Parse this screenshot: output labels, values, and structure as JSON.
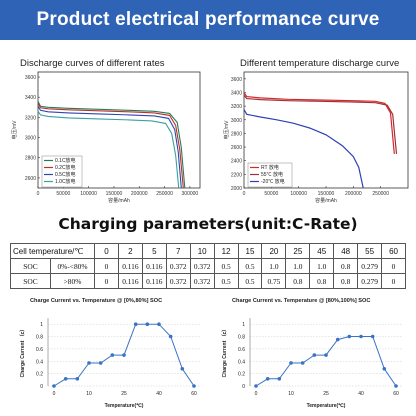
{
  "header": {
    "title": "Product electrical performance curve"
  },
  "charts_top": {
    "rate": {
      "caption": "Discharge curves of different rates",
      "ylabel": "电压/mV",
      "xlabel": "容量/mAh",
      "y_ticks": [
        "3600",
        "3400",
        "3200",
        "3000",
        "2800",
        "2600"
      ],
      "x_ticks": [
        "0",
        "50000",
        "100000",
        "150000",
        "200000",
        "250000",
        "300000"
      ],
      "legend": [
        "0.1C放电",
        "0.2C放电",
        "0.5C放电",
        "1.0C放电"
      ]
    },
    "temp": {
      "caption": "Different temperature discharge curve",
      "ylabel": "电压/mV",
      "xlabel": "容量/mAh",
      "y_ticks": [
        "3600",
        "3400",
        "3200",
        "3000",
        "2800",
        "2600",
        "2400",
        "2200",
        "2000"
      ],
      "x_ticks": [
        "0",
        "50000",
        "100000",
        "150000",
        "200000",
        "250000"
      ],
      "legend": [
        "RT 放电",
        "55℃ 放电",
        "-20℃ 放电"
      ]
    }
  },
  "charging": {
    "title": "Charging parameters(unit:C-Rate)",
    "header_label": "Cell temperature/℃",
    "temps": [
      "0",
      "2",
      "5",
      "7",
      "10",
      "12",
      "15",
      "20",
      "25",
      "45",
      "48",
      "55",
      "60"
    ],
    "rows": [
      {
        "label": "SOC",
        "range": "0%-<80%",
        "values": [
          "0",
          "0.116",
          "0.116",
          "0.372",
          "0.372",
          "0.5",
          "0.5",
          "1.0",
          "1.0",
          "1.0",
          "0.8",
          "0.279",
          "0"
        ]
      },
      {
        "label": "SOC",
        "range": ">80%",
        "values": [
          "0",
          "0.116",
          "0.116",
          "0.372",
          "0.372",
          "0.5",
          "0.5",
          "0.75",
          "0.8",
          "0.8",
          "0.8",
          "0.279",
          "0"
        ]
      }
    ]
  },
  "colors": {
    "banner": "#2f63b6",
    "line": "#3a73c6",
    "rt": "#d62828",
    "t55": "#a0303a",
    "tm20": "#2f3fb6",
    "r01": "#2a7a56",
    "r02": "#b83228",
    "r05": "#2f45b0",
    "r10": "#3aa0a0"
  },
  "chart_data": [
    {
      "type": "line",
      "title": "Discharge curves of different rates",
      "xlabel": "容量/mAh",
      "ylabel": "电压/mV",
      "xlim": [
        0,
        320000
      ],
      "ylim": [
        2500,
        3650
      ],
      "legend_position": "bottom-left",
      "series": [
        {
          "name": "0.1C放电",
          "x": [
            0,
            5000,
            20000,
            60000,
            120000,
            180000,
            230000,
            260000,
            275000,
            283000,
            290000
          ],
          "y": [
            3360,
            3310,
            3300,
            3290,
            3280,
            3270,
            3260,
            3240,
            3150,
            2900,
            2500
          ]
        },
        {
          "name": "0.2C放电",
          "x": [
            0,
            5000,
            20000,
            60000,
            120000,
            180000,
            230000,
            260000,
            272000,
            280000,
            287000
          ],
          "y": [
            3340,
            3295,
            3285,
            3275,
            3265,
            3255,
            3245,
            3220,
            3120,
            2880,
            2500
          ]
        },
        {
          "name": "0.5C放电",
          "x": [
            0,
            5000,
            20000,
            60000,
            120000,
            180000,
            230000,
            258000,
            270000,
            277000,
            283000
          ],
          "y": [
            3310,
            3270,
            3255,
            3245,
            3235,
            3225,
            3215,
            3190,
            3080,
            2860,
            2500
          ]
        },
        {
          "name": "1.0C放电",
          "x": [
            0,
            5000,
            20000,
            60000,
            120000,
            180000,
            225000,
            252000,
            264000,
            272000,
            278000
          ],
          "y": [
            3260,
            3225,
            3210,
            3195,
            3185,
            3175,
            3165,
            3140,
            3040,
            2820,
            2500
          ]
        }
      ]
    },
    {
      "type": "line",
      "title": "Different temperature discharge curve",
      "xlabel": "容量/mAh",
      "ylabel": "电压/mV",
      "xlim": [
        0,
        300000
      ],
      "ylim": [
        2000,
        3700
      ],
      "legend_position": "bottom-left",
      "series": [
        {
          "name": "RT 放电",
          "x": [
            0,
            5000,
            30000,
            80000,
            140000,
            200000,
            240000,
            258000,
            268000,
            275000
          ],
          "y": [
            3400,
            3340,
            3320,
            3300,
            3290,
            3280,
            3270,
            3240,
            3100,
            2500
          ]
        },
        {
          "name": "55℃ 放电",
          "x": [
            0,
            5000,
            30000,
            80000,
            140000,
            200000,
            240000,
            262000,
            272000,
            279000
          ],
          "y": [
            3360,
            3310,
            3295,
            3280,
            3270,
            3260,
            3250,
            3215,
            3080,
            2500
          ]
        },
        {
          "name": "-20℃ 放电",
          "x": [
            0,
            5000,
            30000,
            60000,
            90000,
            120000,
            150000,
            180000,
            200000,
            210000,
            218000
          ],
          "y": [
            3150,
            3080,
            3040,
            3000,
            2950,
            2880,
            2780,
            2620,
            2460,
            2300,
            2000
          ]
        }
      ]
    },
    {
      "type": "line",
      "title": "Charge Current vs. Temperature @ [0%,80%] SOC",
      "xlabel": "Temperature(℃)",
      "ylabel": "Charge Current （c）",
      "x_ticks": [
        "0",
        "10",
        "25",
        "40",
        "60"
      ],
      "y_ticks": [
        "0",
        "0.2",
        "0.4",
        "0.6",
        "0.8",
        "1"
      ],
      "ylim": [
        0,
        1.1
      ],
      "categories": [
        "0",
        "2",
        "5",
        "7",
        "10",
        "12",
        "15",
        "20",
        "25",
        "45",
        "48",
        "55",
        "60"
      ],
      "values": [
        0,
        0.116,
        0.116,
        0.372,
        0.372,
        0.5,
        0.5,
        1.0,
        1.0,
        1.0,
        0.8,
        0.279,
        0
      ]
    },
    {
      "type": "line",
      "title": "Charge Current vs. Temperature @ [80%,100%] SOC",
      "xlabel": "Temperature(℃)",
      "ylabel": "Charge Current （c）",
      "x_ticks": [
        "0",
        "10",
        "25",
        "40",
        "60"
      ],
      "y_ticks": [
        "0",
        "0.2",
        "0.4",
        "0.6",
        "0.8",
        "1"
      ],
      "ylim": [
        0,
        1.1
      ],
      "categories": [
        "0",
        "2",
        "5",
        "7",
        "10",
        "12",
        "15",
        "20",
        "25",
        "45",
        "48",
        "55",
        "60"
      ],
      "values": [
        0,
        0.116,
        0.116,
        0.372,
        0.372,
        0.5,
        0.5,
        0.75,
        0.8,
        0.8,
        0.8,
        0.279,
        0
      ]
    }
  ]
}
